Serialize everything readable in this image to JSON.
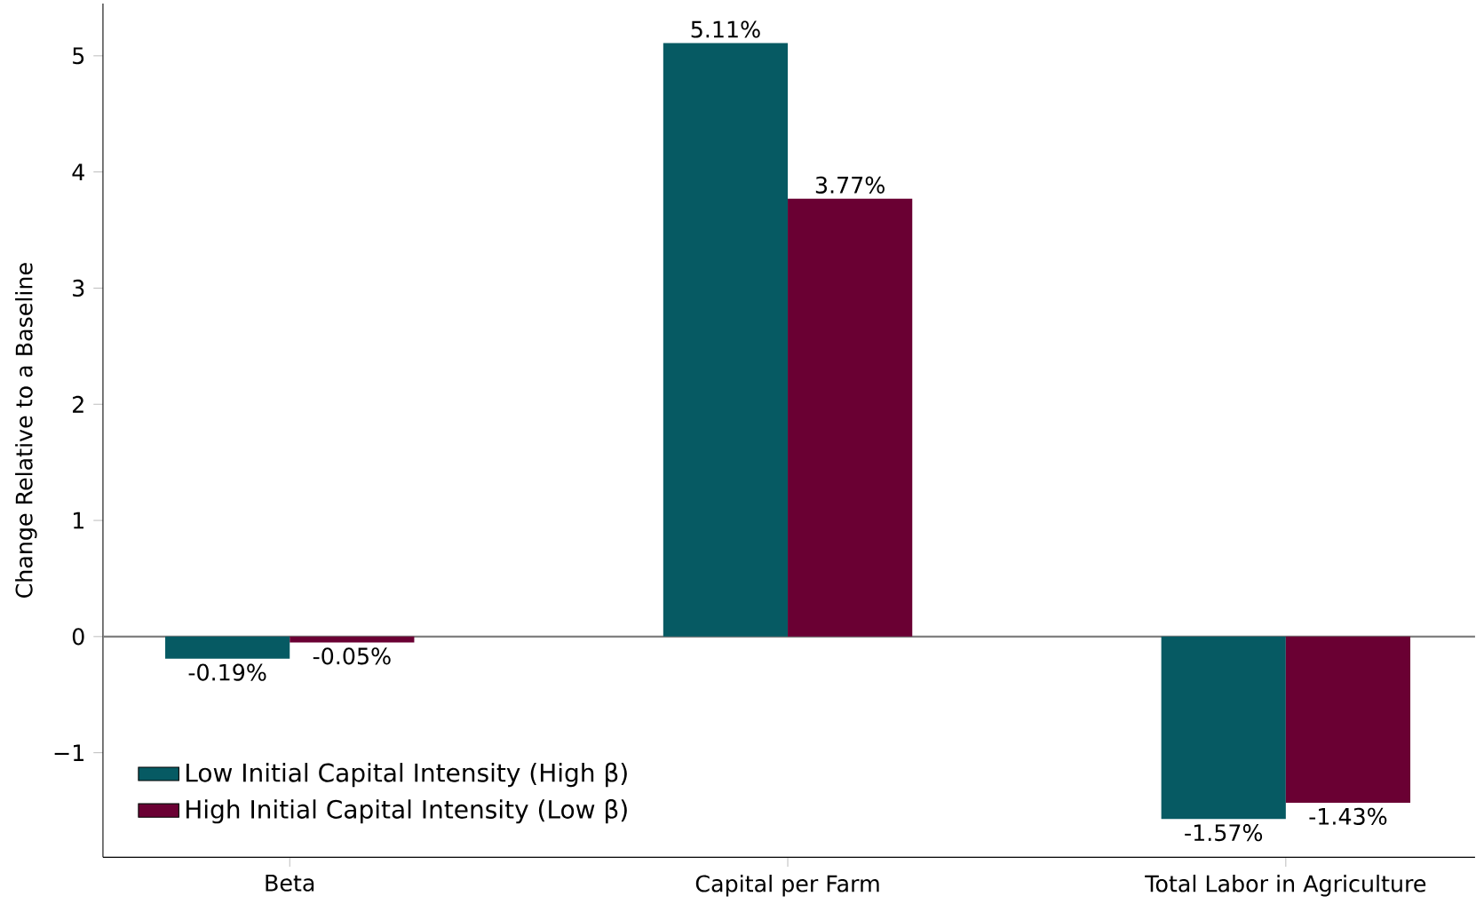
{
  "chart_data": {
    "type": "bar",
    "ylabel": "Change Relative to a Baseline",
    "categories": [
      "Beta",
      "Capital per Farm",
      "Total Labor in Agriculture"
    ],
    "series": [
      {
        "name": "Low Initial Capital Intensity (High β)",
        "color": "#065a63",
        "values": [
          -0.19,
          5.11,
          -1.57
        ],
        "value_labels": [
          "-0.19%",
          "5.11%",
          "-1.57%"
        ]
      },
      {
        "name": "High Initial Capital Intensity (Low β)",
        "color": "#6a0033",
        "values": [
          -0.05,
          3.77,
          -1.43
        ],
        "value_labels": [
          "-0.05%",
          "3.77%",
          "-1.43%"
        ]
      }
    ],
    "ylim": [
      -1.9,
      5.45
    ],
    "yticks": [
      {
        "value": -1,
        "label": "−1"
      },
      0,
      1,
      2,
      3,
      4,
      5
    ],
    "ref_lines": [
      {
        "axis": "y",
        "value": 0,
        "color": "#808080"
      }
    ],
    "legend": "bottom left"
  }
}
